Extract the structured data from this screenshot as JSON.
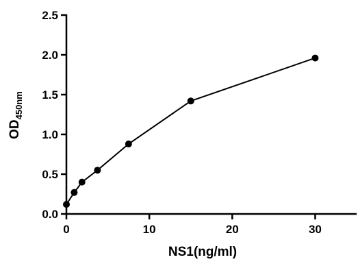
{
  "chart_data": {
    "type": "line",
    "title": "",
    "xlabel": "NS1(ng/ml)",
    "ylabel_main": "OD",
    "ylabel_sub": "450nm",
    "xlim": [
      0,
      35
    ],
    "ylim": [
      0,
      2.5
    ],
    "x_ticks": [
      0,
      10,
      20,
      30
    ],
    "x_tick_labels": [
      "0",
      "10",
      "20",
      "30"
    ],
    "y_ticks": [
      0,
      0.5,
      1.0,
      1.5,
      2.0,
      2.5
    ],
    "y_tick_labels": [
      "0.0",
      "0.5",
      "1.0",
      "1.5",
      "2.0",
      "2.5"
    ],
    "grid": false,
    "legend": "none",
    "colors": {
      "line": "#000000",
      "marker": "#000000"
    },
    "series": [
      {
        "x": [
          0,
          0.94,
          1.875,
          3.75,
          7.5,
          15,
          30
        ],
        "y": [
          0.12,
          0.27,
          0.4,
          0.55,
          0.88,
          1.42,
          1.96
        ]
      }
    ]
  }
}
